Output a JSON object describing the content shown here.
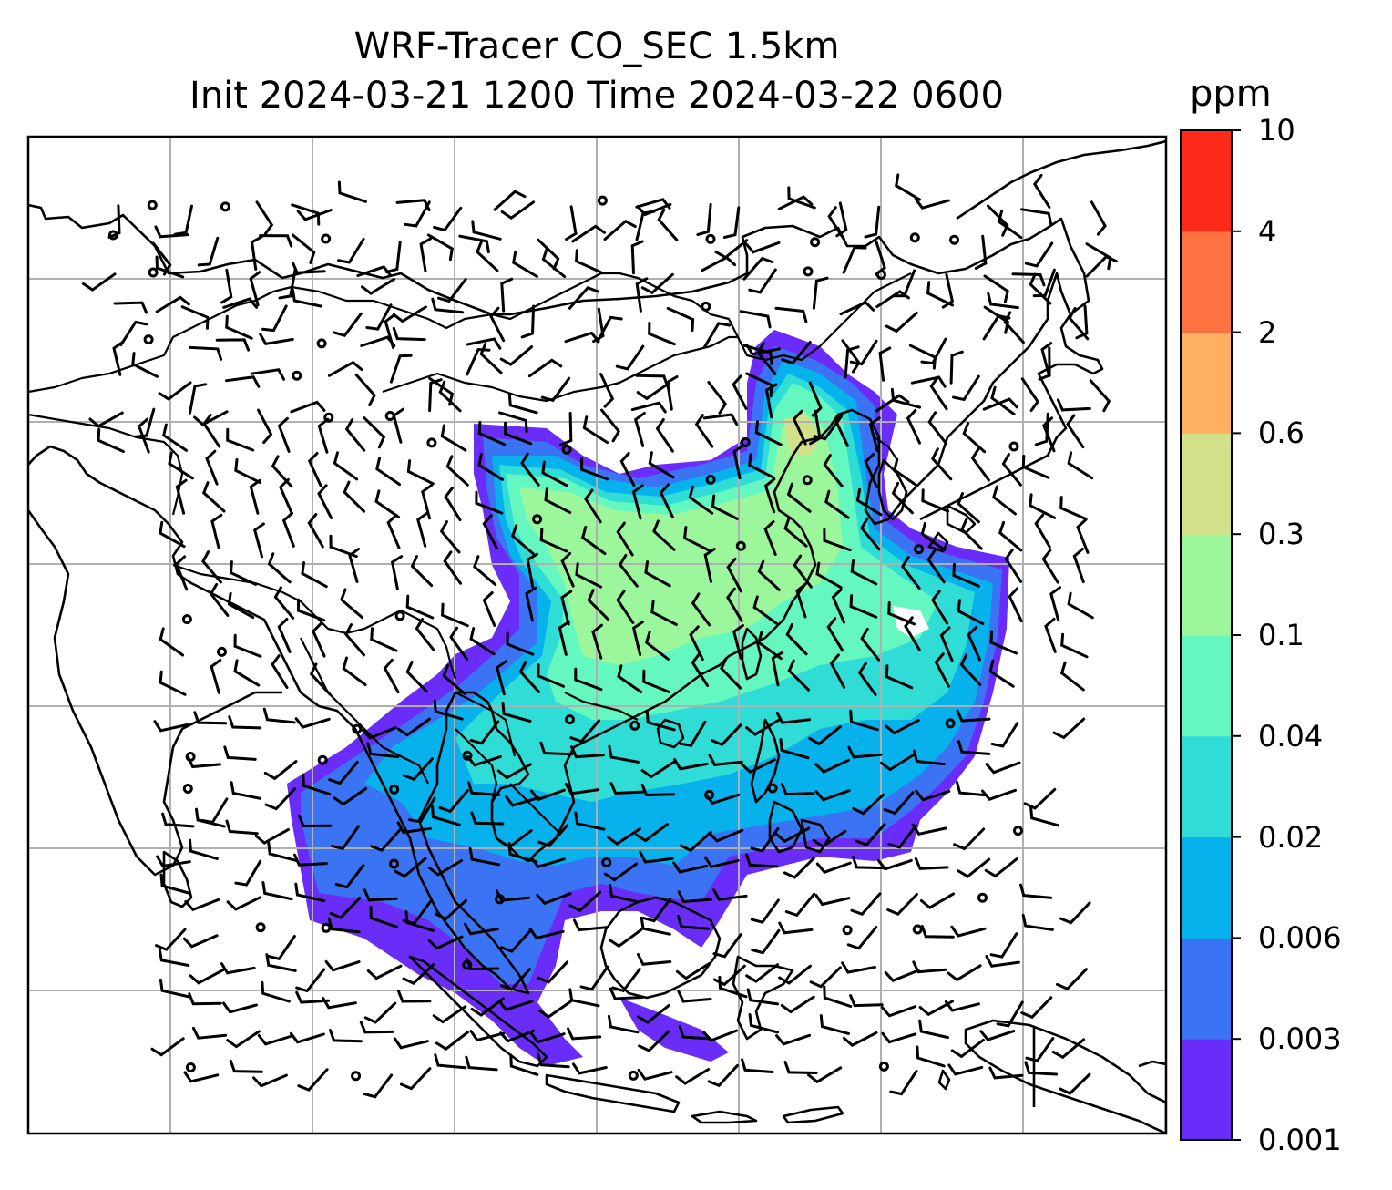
{
  "title": {
    "line1": "WRF-Tracer CO_SEC 1.5km",
    "line2": "Init 2024-03-21 1200 Time 2024-03-22 0600"
  },
  "colorbar": {
    "unit": "ppm",
    "levels": [
      "0.001",
      "0.003",
      "0.006",
      "0.02",
      "0.04",
      "0.1",
      "0.3",
      "0.6",
      "2",
      "4",
      "10"
    ],
    "colors": [
      "#6a2cf8",
      "#3a74f4",
      "#06b1ec",
      "#2fdcd6",
      "#64f7c0",
      "#9cf79c",
      "#d2e08a",
      "#fdb060",
      "#fe7140",
      "#fc2a1a"
    ]
  },
  "map": {
    "features": [
      "coastlines",
      "country-borders",
      "gridlines",
      "wind-barbs",
      "co-tracer-concentration"
    ],
    "plume_colors": {
      "outer": "#6a2cf8",
      "edge": "#3a74f4",
      "low": "#06b1ec",
      "mid_low": "#2fdcd6",
      "mid": "#64f7c0",
      "high": "#9cf79c",
      "peak": "#d2e08a"
    }
  }
}
